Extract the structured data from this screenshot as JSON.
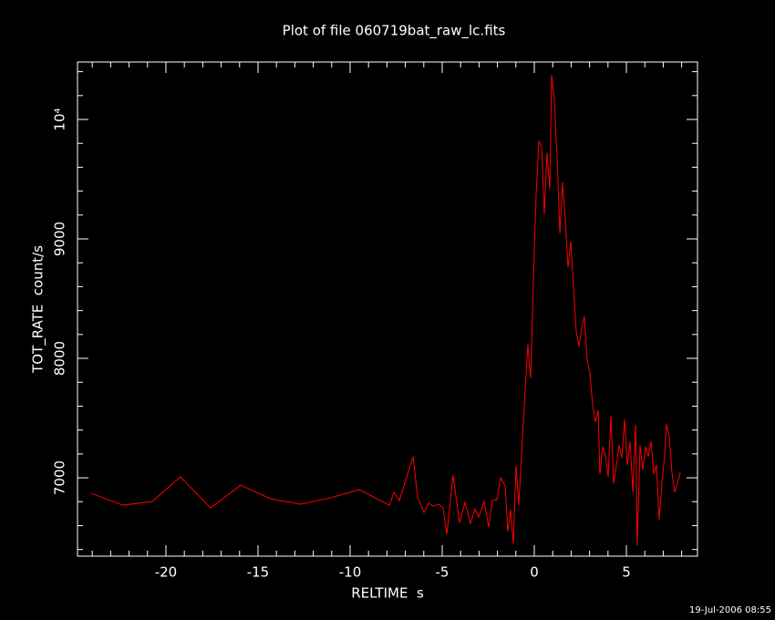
{
  "chart_data": {
    "type": "line",
    "title": "Plot of file 060719bat_raw_lc.fits",
    "xlabel": "RELTIME  s",
    "ylabel": "TOT_RATE  count/s",
    "timestamp": "19-Jul-2006 08:55",
    "color": "#ff0000",
    "xlim": [
      -24.8,
      8.86
    ],
    "ylim": [
      6344,
      10481
    ],
    "xticks": [
      -20,
      -15,
      -10,
      -5,
      0,
      5
    ],
    "yticks": [
      7000,
      8000,
      9000,
      {
        "value": 10000,
        "label": "10⁴"
      }
    ],
    "xminorticks": [
      -24,
      -23,
      -22,
      -21,
      -19,
      -18,
      -17,
      -16,
      -14,
      -13,
      -12,
      -11,
      -9,
      -8,
      -7,
      -6,
      -4,
      -3,
      -2,
      -1,
      1,
      2,
      3,
      4,
      6,
      7,
      8
    ],
    "yminorticks": [
      6400,
      6600,
      6800,
      7200,
      7400,
      7600,
      7800,
      8200,
      8400,
      8600,
      8800,
      9200,
      9400,
      9600,
      9800,
      10200,
      10400
    ],
    "x": [
      -24.06,
      -22.33,
      -20.74,
      -19.21,
      -17.57,
      -15.94,
      -14.31,
      -12.67,
      -11.09,
      -9.5,
      -7.87,
      -7.62,
      -7.33,
      -6.58,
      -6.34,
      -5.99,
      -5.74,
      -5.5,
      -5.2,
      -4.95,
      -4.75,
      -4.41,
      -4.06,
      -3.76,
      -3.47,
      -3.22,
      -3.02,
      -2.72,
      -2.48,
      -2.28,
      -2.03,
      -1.83,
      -1.58,
      -1.44,
      -1.29,
      -1.14,
      -0.99,
      -0.84,
      -0.69,
      -0.5,
      -0.35,
      -0.2,
      -0.05,
      0.1,
      0.25,
      0.4,
      0.54,
      0.69,
      0.84,
      0.94,
      1.09,
      1.24,
      1.39,
      1.53,
      1.68,
      1.83,
      1.98,
      2.13,
      2.28,
      2.43,
      2.57,
      2.72,
      2.87,
      3.02,
      3.17,
      3.32,
      3.47,
      3.56,
      3.71,
      3.86,
      4.01,
      4.16,
      4.31,
      4.46,
      4.6,
      4.75,
      4.9,
      5.05,
      5.2,
      5.35,
      5.5,
      5.59,
      5.74,
      5.89,
      6.04,
      6.19,
      6.34,
      6.49,
      6.63,
      6.78,
      6.93,
      7.08,
      7.18,
      7.33,
      7.48,
      7.62,
      7.77,
      7.92
    ],
    "values": [
      6870,
      6771,
      6802,
      7008,
      6748,
      6939,
      6824,
      6779,
      6832,
      6901,
      6771,
      6878,
      6809,
      7176,
      6840,
      6710,
      6786,
      6763,
      6779,
      6748,
      6527,
      7023,
      6626,
      6794,
      6618,
      6740,
      6672,
      6802,
      6588,
      6809,
      6817,
      7000,
      6931,
      6550,
      6733,
      6450,
      7099,
      6771,
      7206,
      7718,
      8115,
      7832,
      8656,
      9374,
      9817,
      9771,
      9206,
      9718,
      9420,
      10374,
      10153,
      9664,
      9046,
      9473,
      9168,
      8763,
      8977,
      8595,
      8214,
      8099,
      8252,
      8351,
      7985,
      7870,
      7603,
      7466,
      7565,
      7031,
      7260,
      7183,
      7008,
      7519,
      6954,
      7107,
      7275,
      7168,
      7489,
      7107,
      7305,
      6878,
      7443,
      6435,
      7275,
      7069,
      7260,
      7183,
      7305,
      7031,
      7107,
      6649,
      6954,
      7198,
      7450,
      7336,
      7031,
      6878,
      6954,
      7046
    ]
  }
}
